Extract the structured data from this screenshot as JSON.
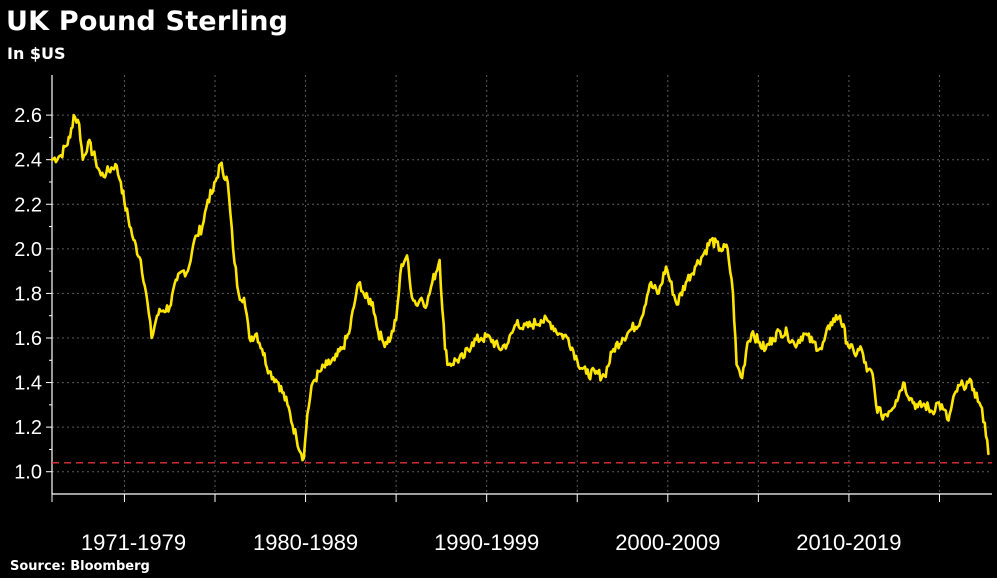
{
  "header": {
    "title": "UK Pound Sterling",
    "subtitle": "In $US"
  },
  "footer": {
    "source": "Source: Bloomberg"
  },
  "colors": {
    "background": "#000000",
    "series": "#FFE600",
    "grid": "#5a5a5a",
    "reference_line": "#E0303A",
    "text": "#FFFFFF"
  },
  "chart_data": {
    "type": "line",
    "title": "UK Pound Sterling",
    "subtitle": "In $US",
    "xlabel": "",
    "ylabel": "",
    "ylim": [
      0.9,
      2.78
    ],
    "xlim": [
      1971.0,
      2022.9
    ],
    "yticks": [
      1.0,
      1.2,
      1.4,
      1.6,
      1.8,
      2.0,
      2.2,
      2.4,
      2.6
    ],
    "ytick_labels": [
      "1.0",
      "1.2",
      "1.4",
      "1.6",
      "1.8",
      "2.0",
      "2.2",
      "2.4",
      "2.6"
    ],
    "decade_boundaries": [
      1971.0,
      1975.0,
      1980.0,
      1985.0,
      1990.0,
      1995.0,
      2000.0,
      2005.0,
      2010.0,
      2015.0,
      2020.0
    ],
    "categories": [
      {
        "label": "1971-1979",
        "start": 1971.0,
        "end": 1980.0
      },
      {
        "label": "1980-1989",
        "start": 1980.0,
        "end": 1990.0
      },
      {
        "label": "1990-1999",
        "start": 1990.0,
        "end": 2000.0
      },
      {
        "label": "2000-2009",
        "start": 2000.0,
        "end": 2010.0
      },
      {
        "label": "2010-2019",
        "start": 2010.0,
        "end": 2020.0
      }
    ],
    "grid": true,
    "legend": "none",
    "reference_line": {
      "y": 1.04,
      "style": "dashed"
    },
    "series": [
      {
        "x": [
          1971.0,
          1971.5,
          1972.0,
          1972.2,
          1972.5,
          1972.7,
          1973.0,
          1973.4,
          1973.7,
          1974.0,
          1974.5,
          1974.8,
          1975.0,
          1975.5,
          1975.9,
          1976.2,
          1976.5,
          1976.8,
          1977.0,
          1977.5,
          1977.9,
          1978.2,
          1978.5,
          1978.8,
          1979.0,
          1979.3,
          1979.6,
          1979.9,
          1980.3,
          1980.7,
          1981.0,
          1981.3,
          1981.6,
          1981.9,
          1982.3,
          1982.6,
          1983.0,
          1983.5,
          1984.0,
          1984.5,
          1984.9,
          1985.1,
          1985.4,
          1985.8,
          1986.2,
          1986.6,
          1987.0,
          1987.4,
          1987.8,
          1988.0,
          1988.3,
          1988.7,
          1989.0,
          1989.3,
          1989.7,
          1990.0,
          1990.3,
          1990.6,
          1990.8,
          1991.1,
          1991.4,
          1991.7,
          1992.0,
          1992.4,
          1992.7,
          1992.9,
          1993.3,
          1993.7,
          1994.2,
          1994.7,
          1995.2,
          1995.7,
          1996.2,
          1996.7,
          1997.0,
          1997.5,
          1998.0,
          1998.5,
          1999.0,
          1999.5,
          2000.0,
          2000.5,
          2001.0,
          2001.5,
          2002.0,
          2002.5,
          2003.0,
          2003.5,
          2004.0,
          2004.5,
          2004.9,
          2005.5,
          2006.0,
          2006.5,
          2007.0,
          2007.4,
          2007.9,
          2008.3,
          2008.6,
          2008.8,
          2009.1,
          2009.4,
          2009.7,
          2010.0,
          2010.4,
          2010.8,
          2011.2,
          2011.6,
          2012.0,
          2012.5,
          2013.0,
          2013.5,
          2014.0,
          2014.5,
          2014.9,
          2015.3,
          2015.7,
          2016.0,
          2016.3,
          2016.5,
          2016.8,
          2017.2,
          2017.6,
          2018.0,
          2018.4,
          2018.8,
          2019.2,
          2019.6,
          2019.9,
          2020.2,
          2020.5,
          2020.9,
          2021.3,
          2021.6,
          2021.9,
          2022.2,
          2022.5,
          2022.7
        ],
        "values": [
          2.4,
          2.42,
          2.5,
          2.6,
          2.56,
          2.4,
          2.48,
          2.4,
          2.33,
          2.34,
          2.38,
          2.3,
          2.21,
          2.04,
          1.95,
          1.8,
          1.6,
          1.7,
          1.72,
          1.74,
          1.86,
          1.9,
          1.9,
          2.02,
          2.06,
          2.1,
          2.22,
          2.26,
          2.38,
          2.3,
          2.0,
          1.8,
          1.78,
          1.6,
          1.62,
          1.55,
          1.45,
          1.4,
          1.3,
          1.15,
          1.06,
          1.26,
          1.4,
          1.45,
          1.48,
          1.5,
          1.55,
          1.62,
          1.8,
          1.85,
          1.78,
          1.76,
          1.63,
          1.58,
          1.6,
          1.68,
          1.93,
          1.97,
          1.82,
          1.75,
          1.78,
          1.75,
          1.85,
          1.95,
          1.55,
          1.48,
          1.5,
          1.51,
          1.58,
          1.6,
          1.6,
          1.55,
          1.58,
          1.68,
          1.64,
          1.66,
          1.68,
          1.67,
          1.62,
          1.6,
          1.5,
          1.44,
          1.44,
          1.43,
          1.55,
          1.6,
          1.64,
          1.68,
          1.84,
          1.8,
          1.92,
          1.75,
          1.85,
          1.92,
          1.98,
          2.04,
          2.0,
          2.0,
          1.8,
          1.48,
          1.42,
          1.58,
          1.63,
          1.58,
          1.55,
          1.6,
          1.63,
          1.62,
          1.57,
          1.62,
          1.58,
          1.55,
          1.67,
          1.7,
          1.58,
          1.53,
          1.55,
          1.45,
          1.44,
          1.3,
          1.25,
          1.27,
          1.32,
          1.4,
          1.33,
          1.29,
          1.3,
          1.27,
          1.31,
          1.28,
          1.23,
          1.36,
          1.39,
          1.4,
          1.37,
          1.31,
          1.22,
          1.08
        ]
      }
    ]
  }
}
